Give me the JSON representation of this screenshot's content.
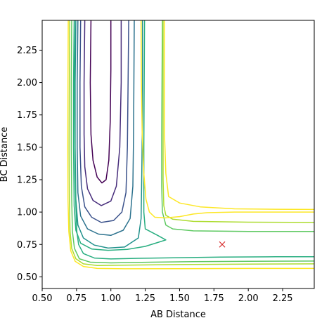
{
  "chart_data": {
    "type": "contour",
    "title": "",
    "xlabel": "AB Distance",
    "ylabel": "BC Distance",
    "xlim": [
      0.5,
      2.48
    ],
    "ylim": [
      0.41,
      2.48
    ],
    "xticks": [
      "0.50",
      "0.75",
      "1.00",
      "1.25",
      "1.50",
      "1.75",
      "2.00",
      "2.25"
    ],
    "yticks": [
      "0.50",
      "0.75",
      "1.00",
      "1.25",
      "1.50",
      "1.75",
      "2.00",
      "2.25"
    ],
    "grid": false,
    "legend": "none",
    "colors": {
      "axis": "#000000",
      "marker": "#d62728",
      "levels": [
        "#440154",
        "#472d7b",
        "#3b528b",
        "#2c728e",
        "#21918c",
        "#28ae80",
        "#5ec962",
        "#addc30",
        "#fde725"
      ]
    },
    "marker": {
      "symbol": "x",
      "x": 1.81,
      "y": 0.75
    },
    "contours": [
      {
        "level": 0,
        "points": [
          [
            0.855,
            2.48
          ],
          [
            0.85,
            2.0
          ],
          [
            0.855,
            1.6
          ],
          [
            0.87,
            1.4
          ],
          [
            0.9,
            1.27
          ],
          [
            0.935,
            1.225
          ],
          [
            0.965,
            1.25
          ],
          [
            0.985,
            1.4
          ],
          [
            0.995,
            1.7
          ],
          [
            1.0,
            2.1
          ],
          [
            1.0,
            2.48
          ]
        ]
      },
      {
        "level": 1,
        "points": [
          [
            0.81,
            2.48
          ],
          [
            0.805,
            2.0
          ],
          [
            0.805,
            1.6
          ],
          [
            0.81,
            1.35
          ],
          [
            0.83,
            1.18
          ],
          [
            0.87,
            1.09
          ],
          [
            0.93,
            1.05
          ],
          [
            1.0,
            1.085
          ],
          [
            1.04,
            1.2
          ],
          [
            1.065,
            1.5
          ],
          [
            1.075,
            2.0
          ],
          [
            1.075,
            2.48
          ]
        ]
      },
      {
        "level": 2,
        "points": [
          [
            0.78,
            2.48
          ],
          [
            0.775,
            2.0
          ],
          [
            0.775,
            1.5
          ],
          [
            0.785,
            1.2
          ],
          [
            0.81,
            1.04
          ],
          [
            0.86,
            0.96
          ],
          [
            0.93,
            0.92
          ],
          [
            1.02,
            0.935
          ],
          [
            1.08,
            1.0
          ],
          [
            1.11,
            1.15
          ],
          [
            1.12,
            1.5
          ],
          [
            1.125,
            2.0
          ],
          [
            1.13,
            2.48
          ]
        ]
      },
      {
        "level": 3,
        "points": [
          [
            0.76,
            2.48
          ],
          [
            0.755,
            2.0
          ],
          [
            0.755,
            1.5
          ],
          [
            0.76,
            1.15
          ],
          [
            0.78,
            0.97
          ],
          [
            0.83,
            0.87
          ],
          [
            0.91,
            0.83
          ],
          [
            1.0,
            0.82
          ],
          [
            1.09,
            0.86
          ],
          [
            1.14,
            0.95
          ],
          [
            1.16,
            1.2
          ],
          [
            1.165,
            1.6
          ],
          [
            1.17,
            2.48
          ]
        ]
      },
      {
        "level": 4,
        "points": [
          [
            0.745,
            2.48
          ],
          [
            0.74,
            2.0
          ],
          [
            0.74,
            1.5
          ],
          [
            0.745,
            1.1
          ],
          [
            0.76,
            0.9
          ],
          [
            0.8,
            0.8
          ],
          [
            0.88,
            0.745
          ],
          [
            0.98,
            0.722
          ],
          [
            1.1,
            0.73
          ],
          [
            1.2,
            0.8
          ],
          [
            1.22,
            0.95
          ],
          [
            1.225,
            1.3
          ],
          [
            1.23,
            1.8
          ],
          [
            1.23,
            2.48
          ]
        ]
      },
      {
        "level": 5,
        "points": [
          [
            0.733,
            2.48
          ],
          [
            0.728,
            2.0
          ],
          [
            0.728,
            1.5
          ],
          [
            0.733,
            1.05
          ],
          [
            0.745,
            0.86
          ],
          [
            0.78,
            0.76
          ],
          [
            0.86,
            0.715
          ],
          [
            0.98,
            0.705
          ],
          [
            1.12,
            0.712
          ],
          [
            1.25,
            0.735
          ],
          [
            1.34,
            0.765
          ],
          [
            1.4,
            0.785
          ],
          [
            1.34,
            0.82
          ],
          [
            1.25,
            0.87
          ],
          [
            1.24,
            1.0
          ],
          [
            1.24,
            1.5
          ],
          [
            1.245,
            2.48
          ]
        ]
      },
      {
        "level": 5,
        "points": [
          [
            2.48,
            0.655
          ],
          [
            2.2,
            0.655
          ],
          [
            1.8,
            0.652
          ],
          [
            1.5,
            0.648
          ],
          [
            1.2,
            0.643
          ],
          [
            1.0,
            0.638
          ],
          [
            0.88,
            0.645
          ],
          [
            0.8,
            0.68
          ],
          [
            0.765,
            0.75
          ],
          [
            0.752,
            0.85
          ],
          [
            0.745,
            1.05
          ],
          [
            0.74,
            1.3
          ],
          [
            0.738,
            1.6
          ],
          [
            0.735,
            2.0
          ],
          [
            0.735,
            2.48
          ]
        ]
      },
      {
        "level": 6,
        "points": [
          [
            2.48,
            0.85
          ],
          [
            2.0,
            0.85
          ],
          [
            1.6,
            0.855
          ],
          [
            1.45,
            0.87
          ],
          [
            1.4,
            0.9
          ],
          [
            1.375,
            1.0
          ],
          [
            1.37,
            1.2
          ],
          [
            1.37,
            1.6
          ],
          [
            1.375,
            2.48
          ]
        ]
      },
      {
        "level": 6,
        "points": [
          [
            2.48,
            0.622
          ],
          [
            2.0,
            0.62
          ],
          [
            1.6,
            0.617
          ],
          [
            1.3,
            0.613
          ],
          [
            1.0,
            0.608
          ],
          [
            0.85,
            0.613
          ],
          [
            0.77,
            0.64
          ],
          [
            0.735,
            0.72
          ],
          [
            0.72,
            0.85
          ],
          [
            0.715,
            1.1
          ],
          [
            0.712,
            1.5
          ],
          [
            0.712,
            2.0
          ],
          [
            0.715,
            2.48
          ]
        ]
      },
      {
        "level": 7,
        "points": [
          [
            2.48,
            0.92
          ],
          [
            2.0,
            0.922
          ],
          [
            1.6,
            0.928
          ],
          [
            1.45,
            0.945
          ],
          [
            1.4,
            0.975
          ],
          [
            1.385,
            1.05
          ],
          [
            1.38,
            1.25
          ],
          [
            1.38,
            1.7
          ],
          [
            1.38,
            2.48
          ]
        ]
      },
      {
        "level": 7,
        "points": [
          [
            2.48,
            0.6
          ],
          [
            2.0,
            0.598
          ],
          [
            1.5,
            0.595
          ],
          [
            1.1,
            0.59
          ],
          [
            0.9,
            0.588
          ],
          [
            0.8,
            0.6
          ],
          [
            0.745,
            0.64
          ],
          [
            0.715,
            0.72
          ],
          [
            0.703,
            0.85
          ],
          [
            0.698,
            1.1
          ],
          [
            0.696,
            1.5
          ],
          [
            0.698,
            2.0
          ],
          [
            0.7,
            2.48
          ]
        ]
      },
      {
        "level": 8,
        "points": [
          [
            2.48,
            1.02
          ],
          [
            2.2,
            1.022
          ],
          [
            1.9,
            1.025
          ],
          [
            1.65,
            1.04
          ],
          [
            1.5,
            1.07
          ],
          [
            1.42,
            1.12
          ],
          [
            1.4,
            1.3
          ],
          [
            1.39,
            1.6
          ],
          [
            1.39,
            2.0
          ],
          [
            1.39,
            2.48
          ]
        ]
      },
      {
        "level": 8,
        "points": [
          [
            2.48,
            0.565
          ],
          [
            2.0,
            0.565
          ],
          [
            1.5,
            0.563
          ],
          [
            1.1,
            0.562
          ],
          [
            0.9,
            0.565
          ],
          [
            0.8,
            0.58
          ],
          [
            0.74,
            0.62
          ],
          [
            0.708,
            0.7
          ],
          [
            0.694,
            0.85
          ],
          [
            0.688,
            1.1
          ],
          [
            0.686,
            1.5
          ],
          [
            0.688,
            2.0
          ],
          [
            0.69,
            2.48
          ]
        ]
      },
      {
        "level": 8,
        "points": [
          [
            1.22,
            2.48
          ],
          [
            1.222,
            2.0
          ],
          [
            1.228,
            1.6
          ],
          [
            1.24,
            1.3
          ],
          [
            1.255,
            1.1
          ],
          [
            1.28,
            1.0
          ],
          [
            1.32,
            0.96
          ],
          [
            1.4,
            0.955
          ],
          [
            1.5,
            0.965
          ],
          [
            1.6,
            0.985
          ],
          [
            1.7,
            0.995
          ],
          [
            1.9,
            1.0
          ],
          [
            2.48,
            1.0
          ]
        ]
      }
    ]
  }
}
